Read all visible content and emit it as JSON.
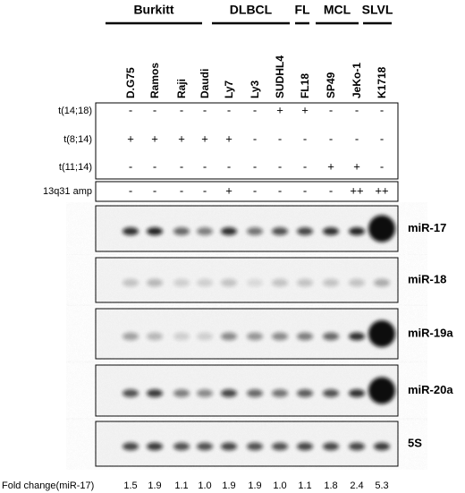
{
  "groups": [
    "Burkitt",
    "DLBCL",
    "FL",
    "MCL",
    "SLVL"
  ],
  "lanes": [
    "D.G75",
    "Ramos",
    "Raji",
    "Daudi",
    "Ly7",
    "Ly3",
    "SUDHL4",
    "FL18",
    "SP49",
    "JeKo-1",
    "K1718"
  ],
  "rows": [
    {
      "label": "t(14;18)",
      "marks": [
        "-",
        "-",
        "-",
        "-",
        "-",
        "-",
        "+",
        "+",
        "-",
        "-",
        "-"
      ]
    },
    {
      "label": "t(8;14)",
      "marks": [
        "+",
        "+",
        "+",
        "+",
        "+",
        "-",
        "-",
        "-",
        "-",
        "-",
        "-"
      ]
    },
    {
      "label": "t(11;14)",
      "marks": [
        "-",
        "-",
        "-",
        "-",
        "-",
        "-",
        "-",
        "-",
        "+",
        "+",
        "-"
      ]
    },
    {
      "label": "13q31 amp",
      "marks": [
        "-",
        "-",
        "-",
        "-",
        "+",
        "-",
        "-",
        "-",
        "-",
        "++",
        "++"
      ]
    }
  ],
  "blots": [
    "miR-17",
    "miR-18",
    "miR-19a",
    "miR-20a",
    "5S"
  ],
  "fold_change": {
    "label": "Fold change(miR-17)",
    "values": [
      "1.5",
      "1.9",
      "1.1",
      "1.0",
      "1.9",
      "1.9",
      "1.0",
      "1.1",
      "1.8",
      "2.4",
      "5.3"
    ]
  }
}
